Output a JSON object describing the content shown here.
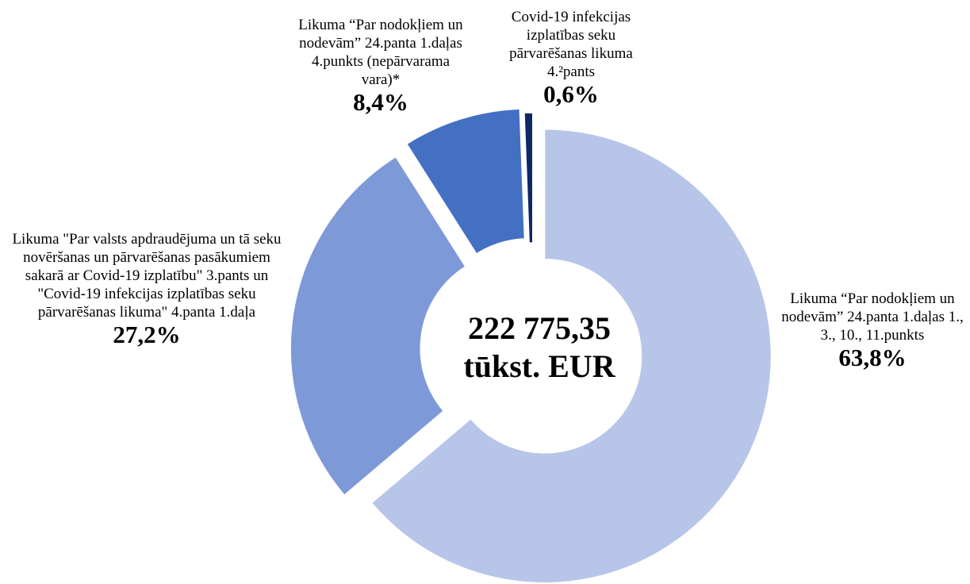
{
  "chart_data": {
    "type": "donut",
    "categories": [
      "Likuma “Par nodokļiem un nodevām” 24.panta 1.daļas 1., 3., 10., 11.punkts",
      "Likuma \"Par valsts apdraudējuma un tā seku novēršanas un pārvarēšanas pasākumiem sakarā ar Covid-19 izplatību\" 3.pants un \"Covid-19 infekcijas izplatības seku pārvarēšanas likuma\" 4.panta 1.daļa",
      "Likuma “Par nodokļiem un nodevām” 24.panta 1.daļas 4.punkts (nepārvarama vara)*",
      "Covid-19 infekcijas izplatības seku pārvarēšanas likuma 4.²pants"
    ],
    "values": [
      63.8,
      27.2,
      8.4,
      0.6
    ],
    "value_labels": [
      "63,8%",
      "27,2%",
      "8,4%",
      "0,6%"
    ],
    "colors": [
      "#b7c5e8",
      "#7e99d8",
      "#4470c4",
      "#0d2766"
    ],
    "center_label": [
      "222 775,35",
      "tūkst. EUR"
    ]
  }
}
